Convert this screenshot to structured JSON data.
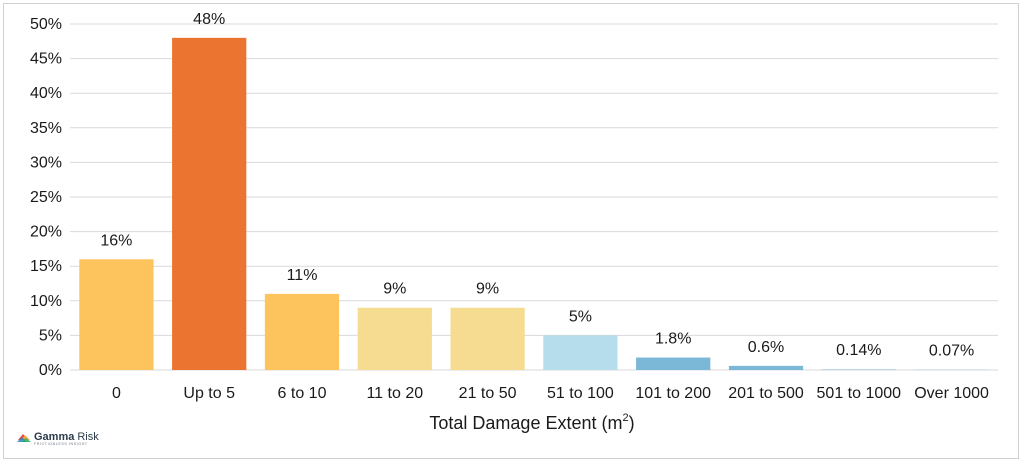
{
  "chart_data": {
    "type": "bar",
    "categories": [
      "0",
      "Up to 5",
      "6 to 10",
      "11 to 20",
      "21 to 50",
      "51 to 100",
      "101 to 200",
      "201 to 500",
      "501 to 1000",
      "Over 1000"
    ],
    "values": [
      16,
      48,
      11,
      9,
      9,
      5,
      1.8,
      0.6,
      0.14,
      0.07
    ],
    "value_labels": [
      "16%",
      "48%",
      "11%",
      "9%",
      "9%",
      "5%",
      "1.8%",
      "0.6%",
      "0.14%",
      "0.07%"
    ],
    "bar_colors": [
      "#FDC45E",
      "#EA7430",
      "#FDC45E",
      "#F6DC91",
      "#F6DC91",
      "#B6DDEB",
      "#7BB7D6",
      "#7BB7D6",
      "#B9D6E6",
      "#B9D6E6"
    ],
    "ylim": [
      0,
      50
    ],
    "yticks": [
      0,
      5,
      10,
      15,
      20,
      25,
      30,
      35,
      40,
      45,
      50
    ],
    "ytick_labels": [
      "0%",
      "5%",
      "10%",
      "15%",
      "20%",
      "25%",
      "30%",
      "35%",
      "40%",
      "45%",
      "50%"
    ],
    "xlabel_main": "Total Damage Extent (m",
    "xlabel_sup": "2",
    "xlabel_end": ")",
    "ylabel": "",
    "grid": true,
    "gridline_color": "#D9D9D9"
  },
  "logo": {
    "name_bold": "Gamma",
    "name_light": "Risk",
    "tagline": "FRICTIONLESS INSIGHT"
  }
}
